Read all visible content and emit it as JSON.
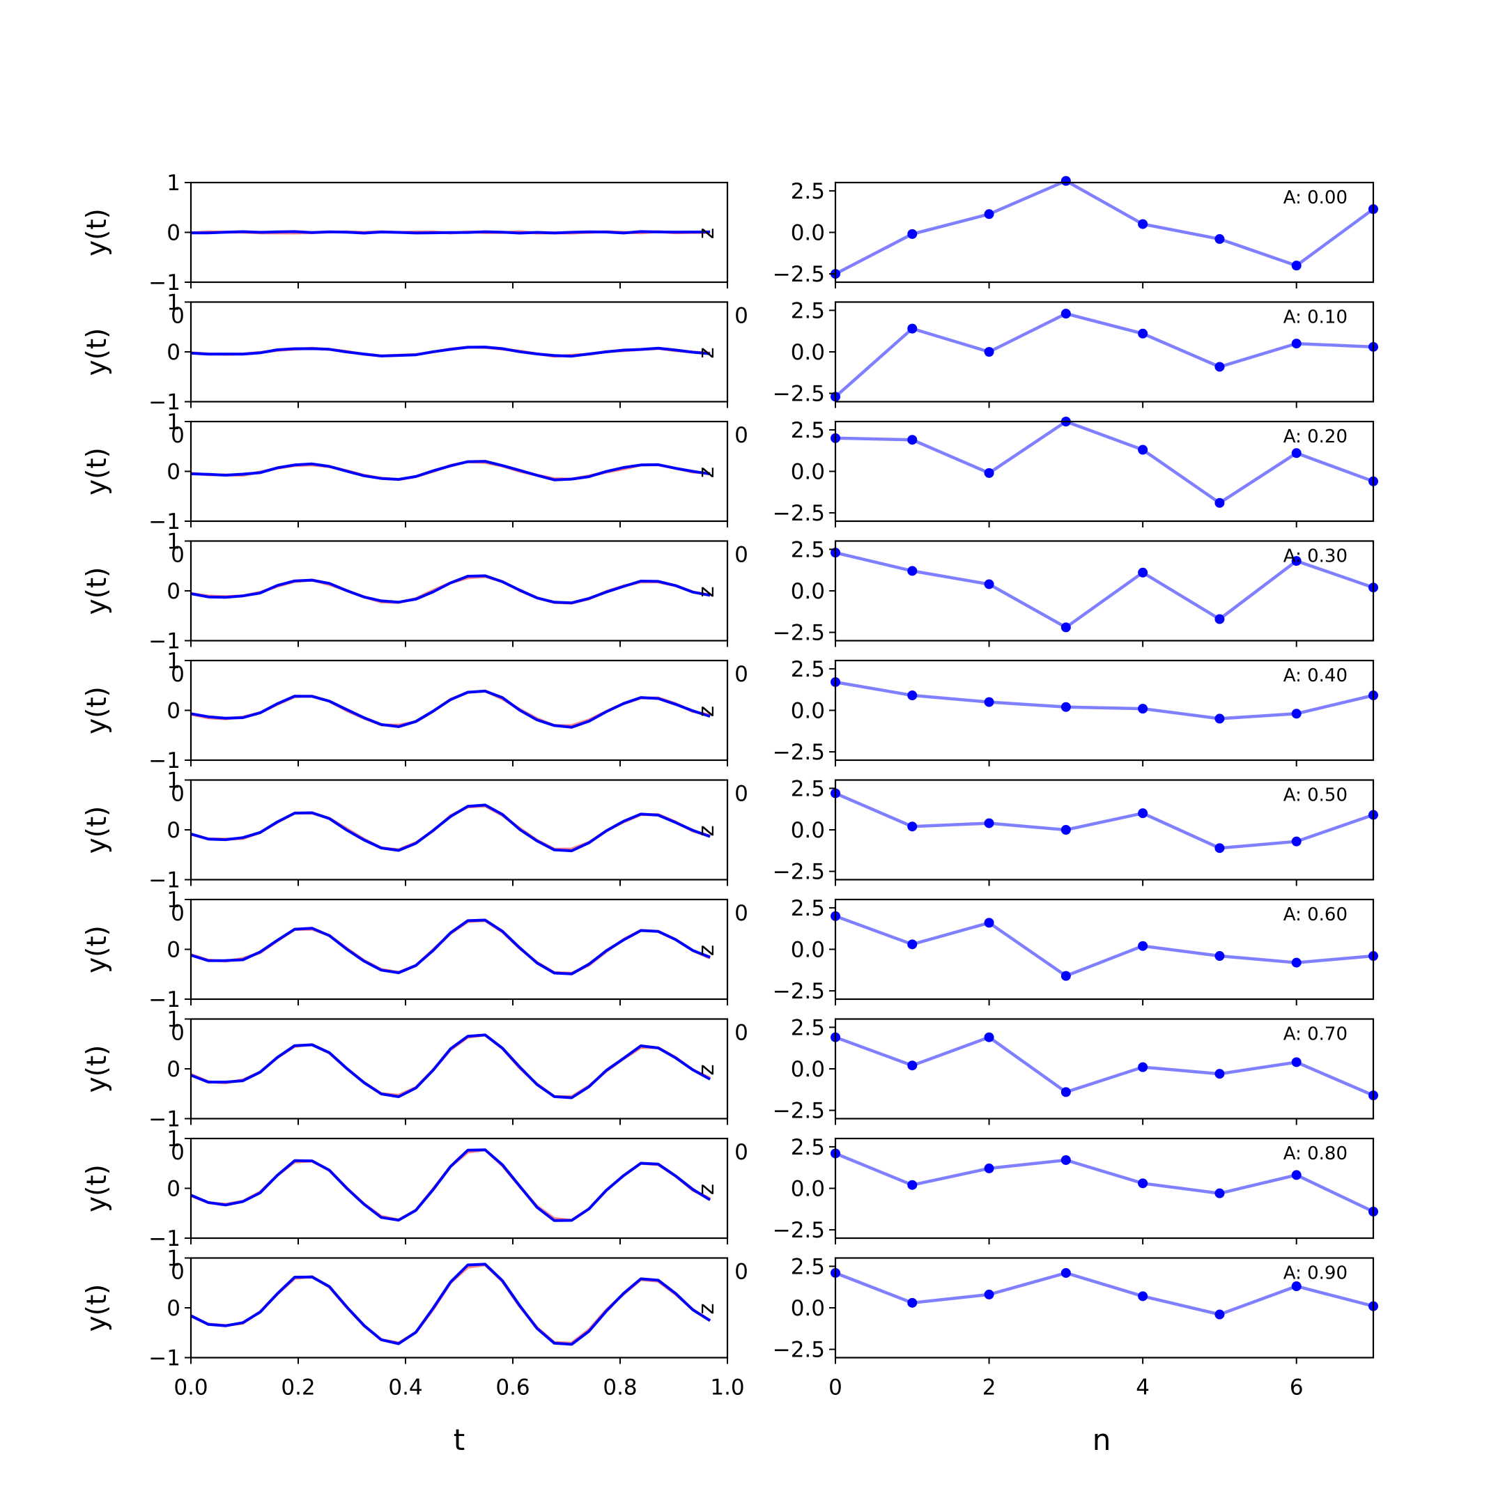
{
  "chart_data": [
    {
      "panel": "time-series-column",
      "type": "line",
      "xlabel": "t",
      "ylabel": "y(t)",
      "xlim": [
        0.0,
        1.0
      ],
      "ylim": [
        -1,
        1
      ],
      "xtick_labels": [
        "0.0",
        "0.2",
        "0.4",
        "0.6",
        "0.8",
        "1.0"
      ],
      "ytick_labels": [
        "1",
        "0",
        "−1"
      ],
      "stray_tick_label": "0",
      "edge_label": "z",
      "colors": {
        "series_a": "#ff6b6b",
        "series_b": "#0000ff"
      },
      "x": [
        0.0,
        0.0323,
        0.0645,
        0.0968,
        0.129,
        0.1613,
        0.1935,
        0.2258,
        0.2581,
        0.2903,
        0.3226,
        0.3548,
        0.3871,
        0.4194,
        0.4516,
        0.4839,
        0.5161,
        0.5484,
        0.5806,
        0.6129,
        0.6452,
        0.6774,
        0.7097,
        0.7419,
        0.7742,
        0.8065,
        0.8387,
        0.871,
        0.9032,
        0.9355,
        0.9677
      ],
      "shape": [
        -0.18,
        -0.36,
        -0.4,
        -0.34,
        -0.1,
        0.32,
        0.68,
        0.7,
        0.46,
        0.02,
        -0.4,
        -0.72,
        -0.8,
        -0.56,
        -0.02,
        0.56,
        0.94,
        0.98,
        0.6,
        0.04,
        -0.46,
        -0.8,
        -0.82,
        -0.52,
        -0.06,
        0.32,
        0.64,
        0.62,
        0.32,
        -0.04,
        -0.28
      ],
      "rows": [
        {
          "amplitude": 0.0
        },
        {
          "amplitude": 0.1
        },
        {
          "amplitude": 0.2
        },
        {
          "amplitude": 0.3
        },
        {
          "amplitude": 0.4
        },
        {
          "amplitude": 0.5
        },
        {
          "amplitude": 0.6
        },
        {
          "amplitude": 0.7
        },
        {
          "amplitude": 0.8
        },
        {
          "amplitude": 0.9
        }
      ]
    },
    {
      "panel": "sample-column",
      "type": "line",
      "xlabel": "n",
      "xlim": [
        0,
        7
      ],
      "ylim": [
        -3.0,
        3.0
      ],
      "xtick_labels": [
        "0",
        "2",
        "4",
        "6"
      ],
      "ytick_labels": [
        "2.5",
        "0.0",
        "−2.5"
      ],
      "stray_tick_label": "0",
      "color": "#0000ff",
      "x": [
        0,
        1,
        2,
        3,
        4,
        5,
        6,
        7
      ],
      "rows": [
        {
          "label": "A: 0.00",
          "values": [
            -2.5,
            -0.1,
            1.1,
            3.1,
            0.5,
            -0.4,
            -2.0,
            1.4
          ]
        },
        {
          "label": "A: 0.10",
          "values": [
            -2.7,
            1.4,
            0.0,
            2.3,
            1.1,
            -0.9,
            0.5,
            0.3
          ]
        },
        {
          "label": "A: 0.20",
          "values": [
            2.0,
            1.9,
            -0.1,
            3.0,
            1.3,
            -1.9,
            1.1,
            -0.6
          ]
        },
        {
          "label": "A: 0.30",
          "values": [
            2.3,
            1.2,
            0.4,
            -2.2,
            1.1,
            -1.7,
            1.8,
            0.2
          ]
        },
        {
          "label": "A: 0.40",
          "values": [
            1.7,
            0.9,
            0.5,
            0.2,
            0.1,
            -0.5,
            -0.2,
            0.9
          ]
        },
        {
          "label": "A: 0.50",
          "values": [
            2.2,
            0.2,
            0.4,
            0.0,
            1.0,
            -1.1,
            -0.7,
            0.9
          ]
        },
        {
          "label": "A: 0.60",
          "values": [
            2.0,
            0.3,
            1.6,
            -1.6,
            0.2,
            -0.4,
            -0.8,
            -0.4
          ]
        },
        {
          "label": "A: 0.70",
          "values": [
            1.9,
            0.2,
            1.9,
            -1.4,
            0.1,
            -0.3,
            0.4,
            -1.6
          ]
        },
        {
          "label": "A: 0.80",
          "values": [
            2.1,
            0.2,
            1.2,
            1.7,
            0.3,
            -0.3,
            0.8,
            -1.4
          ]
        },
        {
          "label": "A: 0.90",
          "values": [
            2.1,
            0.3,
            0.8,
            2.1,
            0.7,
            -0.4,
            1.3,
            0.1
          ]
        }
      ]
    }
  ]
}
